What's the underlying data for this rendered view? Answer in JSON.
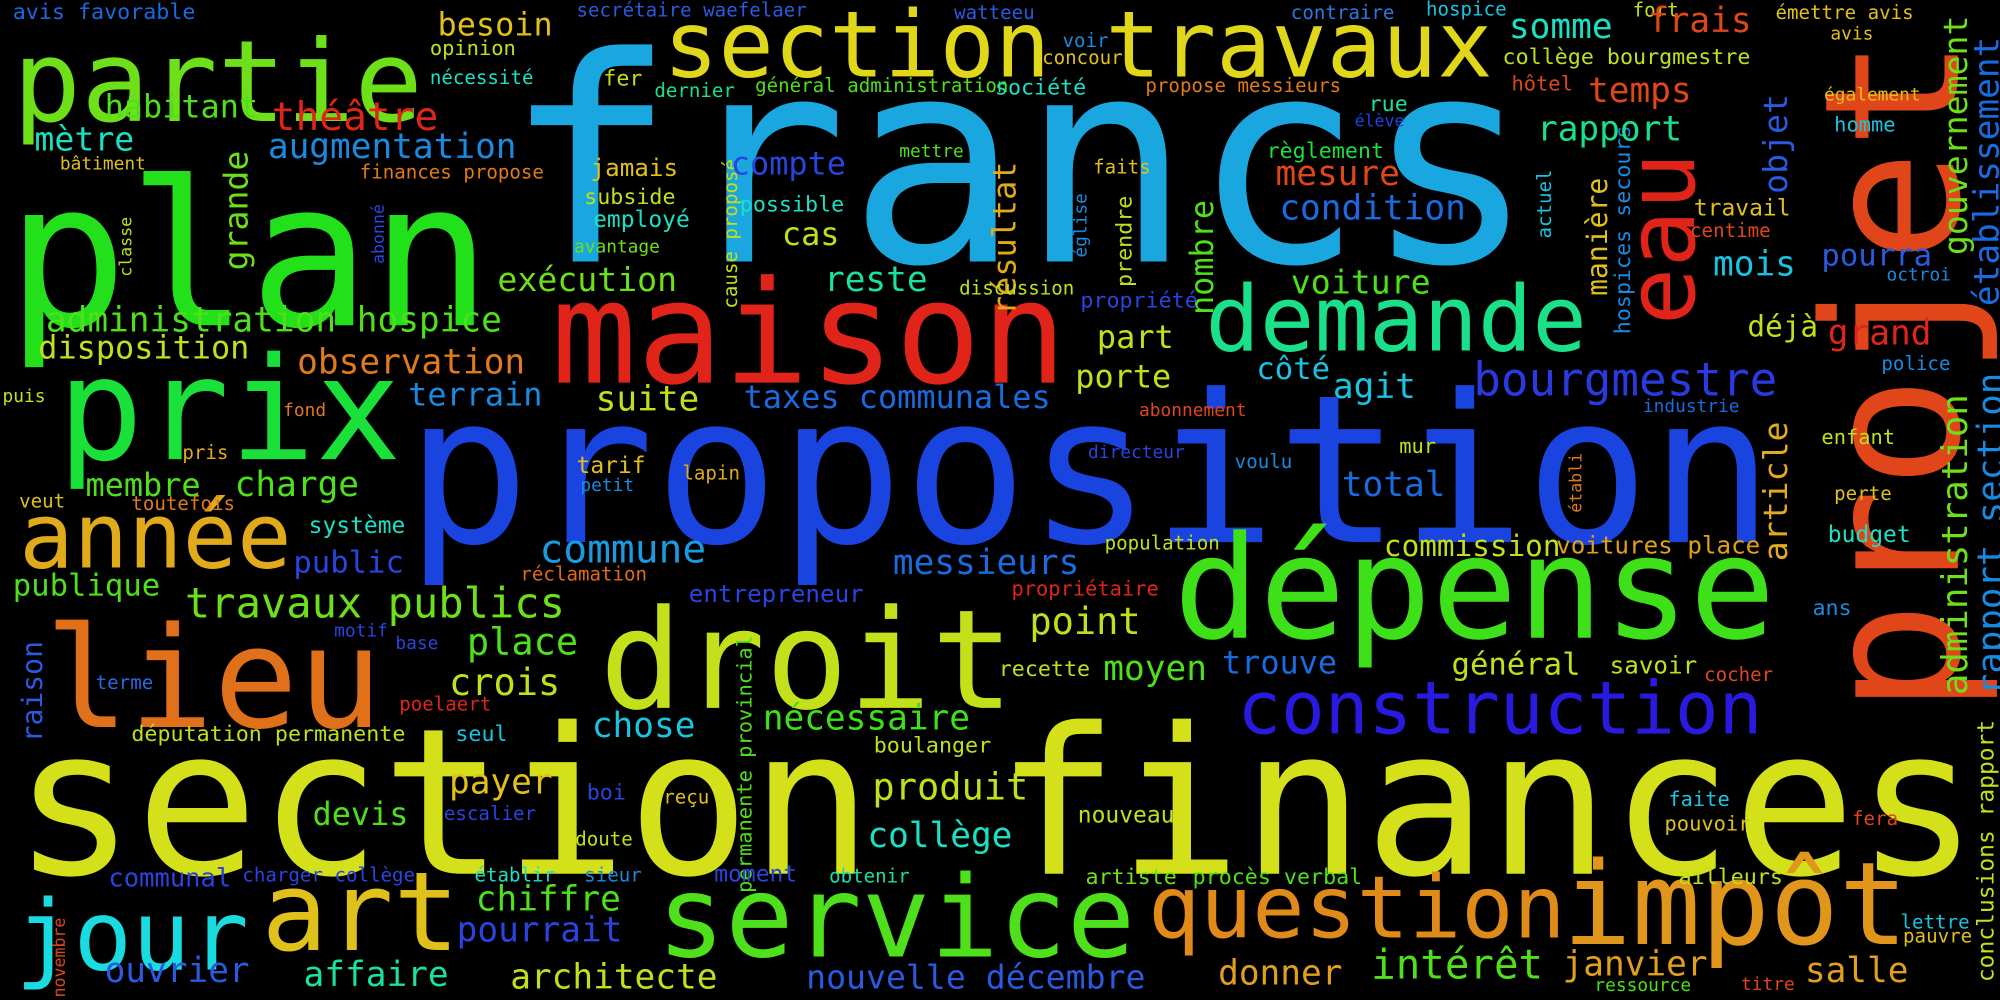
{
  "words": [
    {
      "text": "francs",
      "color": "#1aa7e0"
    },
    {
      "text": "proposition",
      "color": "#1a44e0"
    },
    {
      "text": "section finances",
      "color": "#d4e01a"
    },
    {
      "text": "plan",
      "color": "#22e01a"
    },
    {
      "text": "maison",
      "color": "#e0241a"
    },
    {
      "text": "projet",
      "color": "#e0461a"
    },
    {
      "text": "eau",
      "color": "#e0241a"
    },
    {
      "text": "dépense",
      "color": "#3ee01a"
    },
    {
      "text": "droit",
      "color": "#c4e01a"
    },
    {
      "text": "demande",
      "color": "#1ae08a"
    },
    {
      "text": "prix",
      "color": "#1ae03a"
    },
    {
      "text": "partie",
      "color": "#6ee01a"
    },
    {
      "text": "section travaux",
      "color": "#e0d61a"
    },
    {
      "text": "lieu",
      "color": "#e0701a"
    },
    {
      "text": "année",
      "color": "#e0aa1a"
    },
    {
      "text": "art",
      "color": "#e0c01a"
    },
    {
      "text": "service",
      "color": "#4ee01a"
    },
    {
      "text": "question",
      "color": "#e08a1a"
    },
    {
      "text": "impôt",
      "color": "#e0961a"
    },
    {
      "text": "jour",
      "color": "#1adce0"
    },
    {
      "text": "construction",
      "color": "#2a1ae0"
    },
    {
      "text": "bourgmestre",
      "color": "#2a3ae0"
    },
    {
      "text": "établissement",
      "color": "#1a6ae0"
    },
    {
      "text": "gouvernement",
      "color": "#6ee01a"
    },
    {
      "text": "administration",
      "color": "#6ee01a"
    },
    {
      "text": "rapport section",
      "color": "#1a8ae0"
    },
    {
      "text": "conclusions rapport",
      "color": "#c0e01a"
    },
    {
      "text": "objet",
      "color": "#2a5ae0"
    },
    {
      "text": "manière",
      "color": "#e0c01a"
    },
    {
      "text": "hospices secours",
      "color": "#1a8ae0"
    },
    {
      "text": "article",
      "color": "#e0aa1a"
    },
    {
      "text": "résultat",
      "color": "#e0aa1a"
    },
    {
      "text": "nombre",
      "color": "#4ee01a"
    },
    {
      "text": "grande",
      "color": "#6ee01a"
    },
    {
      "text": "raison",
      "color": "#2a5ae0"
    },
    {
      "text": "permanente provincial",
      "color": "#4ee01a"
    },
    {
      "text": "prendre",
      "color": "#c0e01a"
    },
    {
      "text": "cause proposé",
      "color": "#c0e01a"
    },
    {
      "text": "église",
      "color": "#1a8ae0"
    },
    {
      "text": "actuel",
      "color": "#1ac4e0"
    },
    {
      "text": "abonné",
      "color": "#2a44e0"
    },
    {
      "text": "classe",
      "color": "#c0e01a"
    },
    {
      "text": "établi",
      "color": "#e07a1a"
    },
    {
      "text": "novembre",
      "color": "#e0461a"
    },
    {
      "text": "avis favorable",
      "color": "#1a6ae0"
    },
    {
      "text": "secrétaire waefelaer",
      "color": "#2a5ae0"
    },
    {
      "text": "watteeu",
      "color": "#2a5ae0"
    },
    {
      "text": "contraire",
      "color": "#2a7ae0"
    },
    {
      "text": "hospice",
      "color": "#1ac4e0"
    },
    {
      "text": "fort",
      "color": "#c0e01a"
    },
    {
      "text": "émettre avis",
      "color": "#e0c01a"
    },
    {
      "text": "avis",
      "color": "#e0c01a"
    },
    {
      "text": "besoin",
      "color": "#e0c01a"
    },
    {
      "text": "opinion",
      "color": "#c0e01a"
    },
    {
      "text": "somme",
      "color": "#1ae0c4"
    },
    {
      "text": "frais",
      "color": "#e0461a"
    },
    {
      "text": "collège bourgmestre",
      "color": "#c0e01a"
    },
    {
      "text": "concour",
      "color": "#e0c01a"
    },
    {
      "text": "voir",
      "color": "#1a8ae0"
    },
    {
      "text": "nécessité",
      "color": "#1ae0c4"
    },
    {
      "text": "fer",
      "color": "#c0e01a"
    },
    {
      "text": "dernier",
      "color": "#1ae08a"
    },
    {
      "text": "général administration",
      "color": "#4ee01a"
    },
    {
      "text": "société",
      "color": "#1ae0c4"
    },
    {
      "text": "propose messieurs",
      "color": "#e07a1a"
    },
    {
      "text": "hôtel",
      "color": "#e0461a"
    },
    {
      "text": "également",
      "color": "#e0c01a"
    },
    {
      "text": "habitant",
      "color": "#4ee01a"
    },
    {
      "text": "théâtre",
      "color": "#e0241a"
    },
    {
      "text": "temps",
      "color": "#e0461a"
    },
    {
      "text": "rue",
      "color": "#1ae0a0"
    },
    {
      "text": "élève",
      "color": "#1a44e0"
    },
    {
      "text": "rapport",
      "color": "#1ae08a"
    },
    {
      "text": "homme",
      "color": "#1ac4e0"
    },
    {
      "text": "mètre",
      "color": "#1ae0c4"
    },
    {
      "text": "augmentation",
      "color": "#1a8ae0"
    },
    {
      "text": "bâtiment",
      "color": "#e0c01a"
    },
    {
      "text": "finances propose",
      "color": "#e07a1a"
    },
    {
      "text": "jamais",
      "color": "#e0c01a"
    },
    {
      "text": "mettre",
      "color": "#4ee01a"
    },
    {
      "text": "règlement",
      "color": "#1ae03a"
    },
    {
      "text": "faits",
      "color": "#e0c01a"
    },
    {
      "text": "compte",
      "color": "#2a44e0"
    },
    {
      "text": "mesure",
      "color": "#e0461a"
    },
    {
      "text": "subside",
      "color": "#c0e01a"
    },
    {
      "text": "possible",
      "color": "#1ae0c4"
    },
    {
      "text": "condition",
      "color": "#1a6ae0"
    },
    {
      "text": "travail",
      "color": "#e0c01a"
    },
    {
      "text": "employé",
      "color": "#1ae0c4"
    },
    {
      "text": "centime",
      "color": "#e0461a"
    },
    {
      "text": "cas",
      "color": "#c0e01a"
    },
    {
      "text": "avantage",
      "color": "#6ee01a"
    },
    {
      "text": "mois",
      "color": "#1ac4e0"
    },
    {
      "text": "pourra",
      "color": "#2a5ae0"
    },
    {
      "text": "octroi",
      "color": "#1a8ae0"
    },
    {
      "text": "exécution",
      "color": "#6ee01a"
    },
    {
      "text": "reste",
      "color": "#1ae0a0"
    },
    {
      "text": "discussion",
      "color": "#c0e01a"
    },
    {
      "text": "voiture",
      "color": "#4ee01a"
    },
    {
      "text": "propriété",
      "color": "#2a44e0"
    },
    {
      "text": "administration hospice",
      "color": "#4ee01a"
    },
    {
      "text": "déjà",
      "color": "#c0e01a"
    },
    {
      "text": "grand",
      "color": "#e0241a"
    },
    {
      "text": "disposition",
      "color": "#c0e01a"
    },
    {
      "text": "observation",
      "color": "#e07a1a"
    },
    {
      "text": "part",
      "color": "#c0e01a"
    },
    {
      "text": "côté",
      "color": "#1ac4e0"
    },
    {
      "text": "agit",
      "color": "#1ac4e0"
    },
    {
      "text": "porte",
      "color": "#c0e01a"
    },
    {
      "text": "police",
      "color": "#1a8ae0"
    },
    {
      "text": "puis",
      "color": "#c0e01a"
    },
    {
      "text": "terrain",
      "color": "#1a8ae0"
    },
    {
      "text": "suite",
      "color": "#c0e01a"
    },
    {
      "text": "taxes communales",
      "color": "#1a6ae0"
    },
    {
      "text": "abonnement",
      "color": "#e0461a"
    },
    {
      "text": "industrie",
      "color": "#1a6ae0"
    },
    {
      "text": "fond",
      "color": "#e07a1a"
    },
    {
      "text": "enfant",
      "color": "#c0e01a"
    },
    {
      "text": "mur",
      "color": "#c0e01a"
    },
    {
      "text": "directeur",
      "color": "#2a44e0"
    },
    {
      "text": "voulu",
      "color": "#1a8ae0"
    },
    {
      "text": "pris",
      "color": "#e0aa1a"
    },
    {
      "text": "tarif",
      "color": "#e0c01a"
    },
    {
      "text": "lapin",
      "color": "#e0aa1a"
    },
    {
      "text": "petit",
      "color": "#1a8ae0"
    },
    {
      "text": "membre",
      "color": "#4ee01a"
    },
    {
      "text": "charge",
      "color": "#4ee01a"
    },
    {
      "text": "total",
      "color": "#1a6ae0"
    },
    {
      "text": "perte",
      "color": "#e0c01a"
    },
    {
      "text": "veut",
      "color": "#e0c01a"
    },
    {
      "text": "toutefois",
      "color": "#e07a1a"
    },
    {
      "text": "système",
      "color": "#1ae0c4"
    },
    {
      "text": "budget",
      "color": "#1ae0c4"
    },
    {
      "text": "population",
      "color": "#c0e01a"
    },
    {
      "text": "commune",
      "color": "#1a9ae0"
    },
    {
      "text": "commission",
      "color": "#c0e01a"
    },
    {
      "text": "voitures place",
      "color": "#e0a01a"
    },
    {
      "text": "public",
      "color": "#2a44e0"
    },
    {
      "text": "messieurs",
      "color": "#1a6ae0"
    },
    {
      "text": "réclamation",
      "color": "#e06a1a"
    },
    {
      "text": "publique",
      "color": "#4ee01a"
    },
    {
      "text": "propriétaire",
      "color": "#e0241a"
    },
    {
      "text": "entrepreneur",
      "color": "#2a44e0"
    },
    {
      "text": "travaux publics",
      "color": "#6ee01a"
    },
    {
      "text": "ans",
      "color": "#1a8ae0"
    },
    {
      "text": "point",
      "color": "#c0e01a"
    },
    {
      "text": "motif",
      "color": "#2a44e0"
    },
    {
      "text": "base",
      "color": "#2a44e0"
    },
    {
      "text": "place",
      "color": "#4ee01a"
    },
    {
      "text": "trouve",
      "color": "#1a6ae0"
    },
    {
      "text": "moyen",
      "color": "#4ee01a"
    },
    {
      "text": "recette",
      "color": "#c0e01a"
    },
    {
      "text": "général",
      "color": "#c0e01a"
    },
    {
      "text": "savoir",
      "color": "#c0e01a"
    },
    {
      "text": "cocher",
      "color": "#e0461a"
    },
    {
      "text": "terme",
      "color": "#2a6ae0"
    },
    {
      "text": "crois",
      "color": "#c0e01a"
    },
    {
      "text": "poelaert",
      "color": "#e0241a"
    },
    {
      "text": "nécessaire",
      "color": "#3ee01a"
    },
    {
      "text": "chose",
      "color": "#1ac4e0"
    },
    {
      "text": "députation permanente",
      "color": "#c0e01a"
    },
    {
      "text": "seul",
      "color": "#1ac4e0"
    },
    {
      "text": "boulanger",
      "color": "#c0e01a"
    },
    {
      "text": "payer",
      "color": "#e0c01a"
    },
    {
      "text": "produit",
      "color": "#c0e01a"
    },
    {
      "text": "boi",
      "color": "#2a44e0"
    },
    {
      "text": "reçu",
      "color": "#e0c01a"
    },
    {
      "text": "devis",
      "color": "#4ee01a"
    },
    {
      "text": "escalier",
      "color": "#2a44e0"
    },
    {
      "text": "faite",
      "color": "#1ac4e0"
    },
    {
      "text": "nouveau",
      "color": "#c0e01a"
    },
    {
      "text": "fera",
      "color": "#e0461a"
    },
    {
      "text": "pouvoir",
      "color": "#e0c01a"
    },
    {
      "text": "collège",
      "color": "#1ae0c4"
    },
    {
      "text": "doute",
      "color": "#c0e01a"
    },
    {
      "text": "communal",
      "color": "#2a44e0"
    },
    {
      "text": "charger collège",
      "color": "#2a44e0"
    },
    {
      "text": "établir",
      "color": "#1ae0c4"
    },
    {
      "text": "sieur",
      "color": "#1a8ae0"
    },
    {
      "text": "moment",
      "color": "#2a44e0"
    },
    {
      "text": "obtenir",
      "color": "#1ae0a0"
    },
    {
      "text": "artiste",
      "color": "#6ee01a"
    },
    {
      "text": "procès verbal",
      "color": "#4ee01a"
    },
    {
      "text": "ailleurs",
      "color": "#c0e01a"
    },
    {
      "text": "chiffre",
      "color": "#4ee01a"
    },
    {
      "text": "pourrait",
      "color": "#2a44e0"
    },
    {
      "text": "lettre",
      "color": "#1ac4e0"
    },
    {
      "text": "pauvre",
      "color": "#e0c01a"
    },
    {
      "text": "intérêt",
      "color": "#4ee01a"
    },
    {
      "text": "janvier",
      "color": "#e0a01a"
    },
    {
      "text": "salle",
      "color": "#e0a01a"
    },
    {
      "text": "ouvrier",
      "color": "#2a5ae0"
    },
    {
      "text": "affaire",
      "color": "#1ae0a0"
    },
    {
      "text": "architecte",
      "color": "#c0e01a"
    },
    {
      "text": "nouvelle décembre",
      "color": "#2a5ae0"
    },
    {
      "text": "donner",
      "color": "#e0a01a"
    },
    {
      "text": "ressource",
      "color": "#4ee01a"
    },
    {
      "text": "titre",
      "color": "#e0461a"
    }
  ]
}
